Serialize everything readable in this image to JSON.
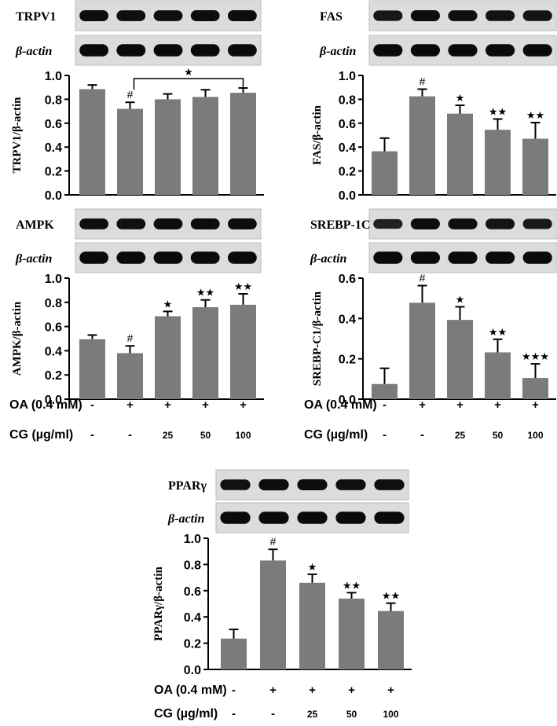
{
  "treatment": {
    "oa_label": "OA (0.4 mM)",
    "cg_label": "CG  (µg/ml)",
    "oa_signs": [
      "-",
      "+",
      "+",
      "+",
      "+"
    ],
    "cg_values": [
      "-",
      "-",
      "25",
      "50",
      "100"
    ]
  },
  "chart_data": [
    {
      "type": "bar",
      "panel": "TRPV1",
      "blot_labels": [
        "TRPV1",
        "β-actin"
      ],
      "ylabel": "TRPV1/β-actin",
      "ylim": [
        0,
        1.0
      ],
      "yticks": [
        "0.0",
        "0.2",
        "0.4",
        "0.6",
        "0.8",
        "1.0"
      ],
      "values": [
        0.885,
        0.72,
        0.8,
        0.82,
        0.855
      ],
      "errors": [
        0.035,
        0.055,
        0.045,
        0.06,
        0.04
      ],
      "marks": [
        "",
        "#",
        "",
        "",
        ""
      ],
      "bracket": {
        "from": 1,
        "to": 4,
        "label": "★"
      },
      "blot_intensity": [
        0.95,
        0.9,
        0.9,
        0.92,
        0.94
      ]
    },
    {
      "type": "bar",
      "panel": "FAS",
      "blot_labels": [
        "FAS",
        "β-actin"
      ],
      "ylabel": "FAS/β-actin",
      "ylim": [
        0,
        1.0
      ],
      "yticks": [
        "0.0",
        "0.2",
        "0.4",
        "0.6",
        "0.8",
        "1.0"
      ],
      "values": [
        0.365,
        0.825,
        0.68,
        0.545,
        0.47
      ],
      "errors": [
        0.11,
        0.06,
        0.07,
        0.09,
        0.135
      ],
      "marks": [
        "",
        "#",
        "★",
        "★★",
        "★★"
      ],
      "blot_intensity": [
        0.75,
        0.95,
        0.9,
        0.85,
        0.8
      ]
    },
    {
      "type": "bar",
      "panel": "AMPK",
      "blot_labels": [
        "AMPK",
        "β-actin"
      ],
      "ylabel": "AMPK/β-actin",
      "ylim": [
        0,
        1.0
      ],
      "yticks": [
        "0.0",
        "0.2",
        "0.4",
        "0.6",
        "0.8",
        "1.0"
      ],
      "values": [
        0.495,
        0.38,
        0.685,
        0.76,
        0.78
      ],
      "errors": [
        0.035,
        0.06,
        0.04,
        0.06,
        0.09
      ],
      "marks": [
        "",
        "#",
        "★",
        "★★",
        "★★"
      ],
      "blot_intensity": [
        0.9,
        0.88,
        0.92,
        0.94,
        0.95
      ]
    },
    {
      "type": "bar",
      "panel": "SREBP-1C",
      "blot_labels": [
        "SREBP-1C",
        "β-actin"
      ],
      "ylabel": "SREBP-C1/β-actin",
      "ylim": [
        0,
        0.6
      ],
      "yticks": [
        "0.0",
        "0.2",
        "0.4",
        "0.6"
      ],
      "values": [
        0.075,
        0.478,
        0.393,
        0.232,
        0.105
      ],
      "errors": [
        0.078,
        0.085,
        0.065,
        0.065,
        0.07
      ],
      "marks": [
        "",
        "#",
        "★",
        "★★",
        "★★★"
      ],
      "blot_intensity": [
        0.55,
        0.95,
        0.9,
        0.8,
        0.7
      ]
    },
    {
      "type": "bar",
      "panel": "PPARγ",
      "blot_labels": [
        "PPARγ",
        "β-actin"
      ],
      "ylabel": "PPARγ/β-actin",
      "ylim": [
        0,
        1.0
      ],
      "yticks": [
        "0.0",
        "0.2",
        "0.4",
        "0.6",
        "0.8",
        "1.0"
      ],
      "values": [
        0.235,
        0.83,
        0.66,
        0.54,
        0.445
      ],
      "errors": [
        0.07,
        0.085,
        0.065,
        0.045,
        0.06
      ],
      "marks": [
        "",
        "#",
        "★",
        "★★",
        "★★"
      ],
      "blot_intensity": [
        0.85,
        0.97,
        0.92,
        0.9,
        0.9
      ]
    }
  ]
}
